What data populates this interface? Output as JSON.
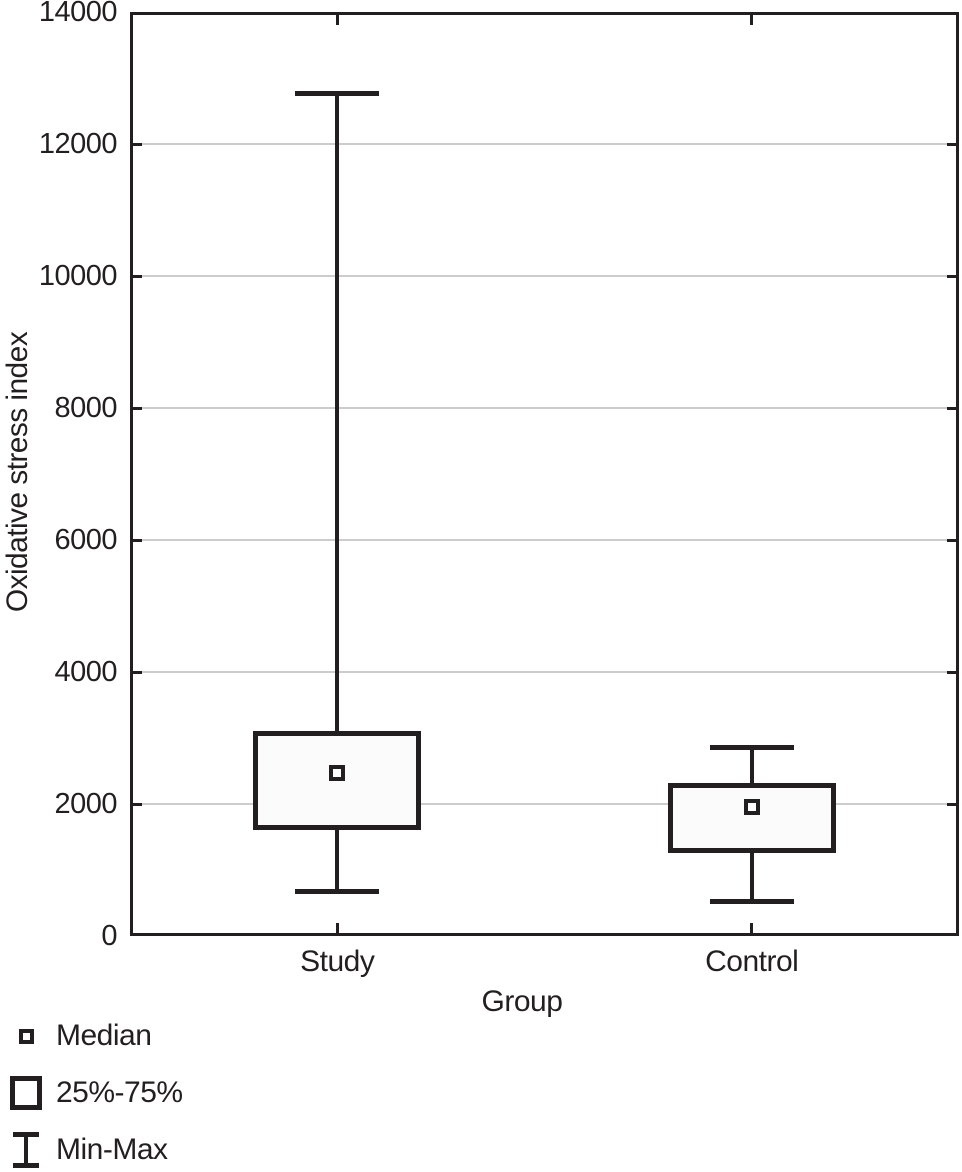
{
  "chart_data": {
    "type": "box",
    "xlabel": "Group",
    "ylabel": "Oxidative stress index",
    "ylim": [
      0,
      14000
    ],
    "yticks": [
      0,
      2000,
      4000,
      6000,
      8000,
      10000,
      12000,
      14000
    ],
    "grid": "horizontal",
    "legend_position": "bottom-left",
    "categories": [
      "Study",
      "Control"
    ],
    "series": [
      {
        "name": "Study",
        "min": 670,
        "q1": 1650,
        "median": 2470,
        "q3": 3060,
        "max": 12760
      },
      {
        "name": "Control",
        "min": 530,
        "q1": 1310,
        "median": 1950,
        "q3": 2280,
        "max": 2850
      }
    ],
    "legend": [
      {
        "label": "Median",
        "marker": "median-square"
      },
      {
        "label": "25%-75%",
        "marker": "iqr-box"
      },
      {
        "label": "Min-Max",
        "marker": "whisker-range"
      }
    ],
    "colors": {
      "ink": "#231f20",
      "grid": "#cccccc",
      "box_fill": "#fbfbfb",
      "background": "#ffffff"
    }
  }
}
